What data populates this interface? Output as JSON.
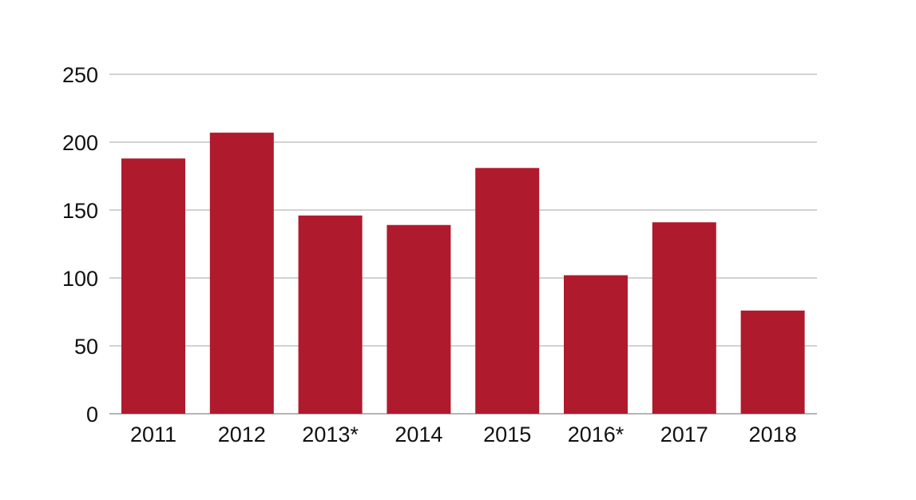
{
  "chart_data": {
    "type": "bar",
    "categories": [
      "2011",
      "2012",
      "2013*",
      "2014",
      "2015",
      "2016*",
      "2017",
      "2018"
    ],
    "values": [
      188,
      207,
      146,
      139,
      181,
      102,
      141,
      76
    ],
    "ylim": [
      0,
      250
    ],
    "yticks": [
      0,
      50,
      100,
      150,
      200,
      250
    ],
    "grid": true,
    "legend": "none",
    "colors": {
      "bar": "#af1a2d",
      "grid": "#c4c4c4",
      "text": "#111111"
    }
  }
}
